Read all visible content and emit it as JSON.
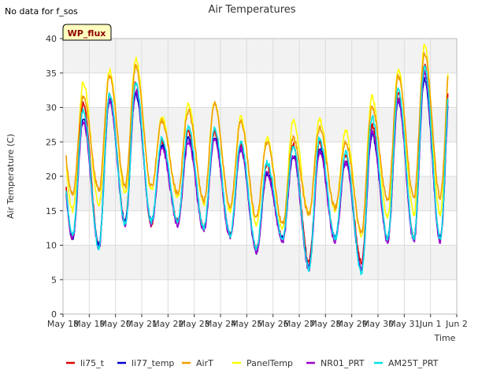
{
  "header": {
    "no_data_note": "No data for f_sos",
    "badge_text": "WP_flux"
  },
  "colors": {
    "band": "#f2f2f2",
    "grid": "#dcdcdc",
    "badge_fill": "#ffffc0",
    "badge_text": "#8b0000"
  },
  "chart_data": {
    "type": "line",
    "title": "Air Temperatures",
    "xlabel": "Time",
    "ylabel": "Air Temperature (C)",
    "ylim": [
      0,
      40
    ],
    "yticks": [
      0,
      5,
      10,
      15,
      20,
      25,
      30,
      35,
      40
    ],
    "xticks": [
      "May 18",
      "May 19",
      "May 20",
      "May 21",
      "May 22",
      "May 23",
      "May 24",
      "May 25",
      "May 26",
      "May 27",
      "May 28",
      "May 29",
      "May 30",
      "May 31",
      "Jun 1",
      "Jun 2"
    ],
    "xlim_days": [
      0,
      15
    ],
    "grid": true,
    "legend_position": "bottom",
    "daily_min_max": {
      "AirT": [
        [
          17.5,
          31.5
        ],
        [
          18.0,
          34.5
        ],
        [
          18.5,
          36.0
        ],
        [
          18.5,
          28.0
        ],
        [
          17.5,
          29.5
        ],
        [
          16.5,
          30.5
        ],
        [
          15.5,
          28.0
        ],
        [
          14.0,
          25.0
        ],
        [
          13.0,
          25.5
        ],
        [
          14.5,
          27.0
        ],
        [
          15.5,
          25.0
        ],
        [
          12.0,
          30.0
        ],
        [
          16.5,
          34.5
        ],
        [
          17.0,
          38.0
        ]
      ],
      "PanelTemp": [
        [
          15.0,
          33.5
        ],
        [
          16.0,
          35.5
        ],
        [
          17.5,
          37.0
        ],
        [
          18.0,
          28.5
        ],
        [
          17.0,
          30.5
        ],
        [
          16.0,
          30.8
        ],
        [
          15.0,
          28.5
        ],
        [
          13.0,
          25.5
        ],
        [
          12.5,
          28.0
        ],
        [
          14.5,
          28.2
        ],
        [
          15.0,
          26.5
        ],
        [
          11.5,
          31.5
        ],
        [
          14.0,
          35.5
        ],
        [
          14.5,
          39.0
        ]
      ],
      "li75_t": [
        [
          11.0,
          30.5
        ],
        [
          10.0,
          32.0
        ],
        [
          13.5,
          33.5
        ],
        [
          13.0,
          25.0
        ],
        [
          13.5,
          26.5
        ],
        [
          12.5,
          26.5
        ],
        [
          11.5,
          24.5
        ],
        [
          9.5,
          21.5
        ],
        [
          11.0,
          24.5
        ],
        [
          7.5,
          25.0
        ],
        [
          11.0,
          23.0
        ],
        [
          7.5,
          27.5
        ],
        [
          11.0,
          32.0
        ],
        [
          11.0,
          36.0
        ]
      ],
      "li77_temp": [
        [
          11.0,
          28.5
        ],
        [
          10.0,
          31.0
        ],
        [
          13.5,
          32.0
        ],
        [
          13.5,
          24.5
        ],
        [
          13.5,
          25.5
        ],
        [
          12.5,
          25.5
        ],
        [
          11.5,
          24.0
        ],
        [
          9.0,
          20.5
        ],
        [
          11.0,
          23.0
        ],
        [
          7.0,
          24.0
        ],
        [
          11.0,
          22.0
        ],
        [
          6.5,
          26.0
        ],
        [
          11.0,
          31.0
        ],
        [
          11.0,
          34.0
        ]
      ],
      "NR01_PRT": [
        [
          11.0,
          28.0
        ],
        [
          9.5,
          31.0
        ],
        [
          13.0,
          32.5
        ],
        [
          13.0,
          24.0
        ],
        [
          13.0,
          25.0
        ],
        [
          12.0,
          25.5
        ],
        [
          11.0,
          24.0
        ],
        [
          9.0,
          20.5
        ],
        [
          10.5,
          23.0
        ],
        [
          6.5,
          23.5
        ],
        [
          10.5,
          22.0
        ],
        [
          6.5,
          26.5
        ],
        [
          10.5,
          31.0
        ],
        [
          10.5,
          35.0
        ]
      ],
      "AM25T_PRT": [
        [
          11.5,
          29.5
        ],
        [
          9.5,
          32.0
        ],
        [
          13.0,
          33.5
        ],
        [
          13.5,
          25.5
        ],
        [
          13.5,
          27.0
        ],
        [
          12.5,
          27.0
        ],
        [
          11.5,
          25.0
        ],
        [
          9.5,
          22.0
        ],
        [
          11.0,
          24.5
        ],
        [
          6.5,
          25.5
        ],
        [
          11.0,
          23.5
        ],
        [
          6.0,
          28.5
        ],
        [
          11.0,
          32.5
        ],
        [
          11.0,
          36.0
        ]
      ]
    },
    "series": [
      {
        "name": "li75_t",
        "color": "#dd0000"
      },
      {
        "name": "li77_temp",
        "color": "#0000cc"
      },
      {
        "name": "AirT",
        "color": "#f0a000"
      },
      {
        "name": "PanelTemp",
        "color": "#ffff00"
      },
      {
        "name": "NR01_PRT",
        "color": "#9900cc"
      },
      {
        "name": "AM25T_PRT",
        "color": "#00e5e5"
      }
    ]
  }
}
